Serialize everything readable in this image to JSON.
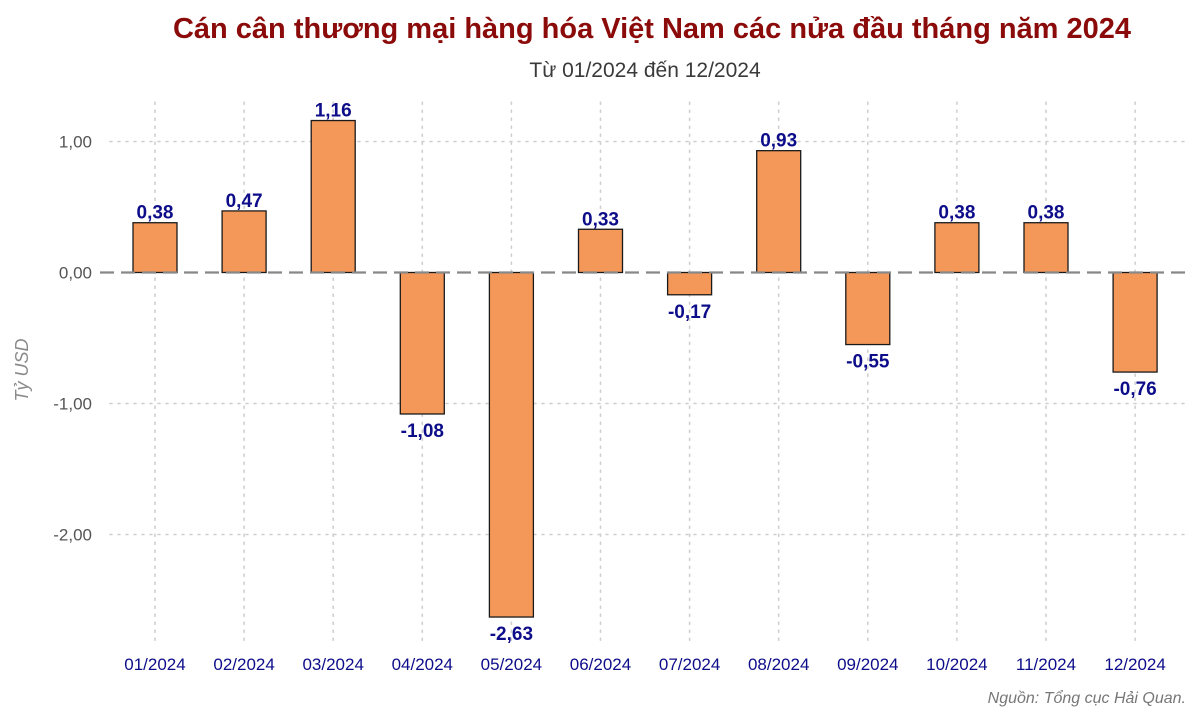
{
  "chart_data": {
    "type": "bar",
    "title": "Cán cân thương mại hàng hóa Việt Nam các nửa đầu tháng năm 2024",
    "subtitle": "Từ 01/2024 đến 12/2024",
    "ylabel": "Tỷ USD",
    "xlabel": "",
    "caption": "Nguồn: Tổng cục Hải Quan.",
    "categories": [
      "01/2024",
      "02/2024",
      "03/2024",
      "04/2024",
      "05/2024",
      "06/2024",
      "07/2024",
      "08/2024",
      "09/2024",
      "10/2024",
      "11/2024",
      "12/2024"
    ],
    "values": [
      0.38,
      0.47,
      1.16,
      -1.08,
      -2.63,
      0.33,
      -0.17,
      0.93,
      -0.55,
      0.38,
      0.38,
      -0.76
    ],
    "value_labels": [
      "0,38",
      "0,47",
      "1,16",
      "-1,08",
      "-2,63",
      "0,33",
      "-0,17",
      "0,93",
      "-0,55",
      "0,38",
      "0,38",
      "-0,76"
    ],
    "yticks": [
      1,
      0,
      -1,
      -2
    ],
    "ytick_labels": [
      "1,00",
      "0,00",
      "-1,00",
      "-2,00"
    ],
    "ylim": [
      -2.85,
      1.3
    ],
    "grid": true,
    "zero_line": "dashed",
    "legend": "none",
    "colors": {
      "bar": "#f4985a",
      "bar_border": "#1a1a1a",
      "title": "#8b0a0a",
      "labels": "#0d0d8a"
    }
  }
}
